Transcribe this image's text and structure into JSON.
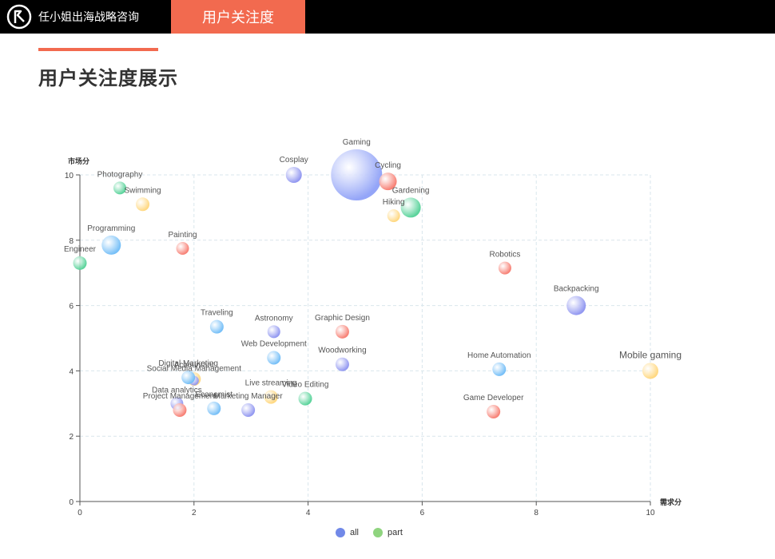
{
  "header": {
    "brand": "任小姐出海战略咨询",
    "tab": "用户关注度"
  },
  "page": {
    "title": "用户关注度展示"
  },
  "chart_data": {
    "type": "scatter",
    "xlabel": "需求分",
    "ylabel": "市场分",
    "xlim": [
      0,
      10
    ],
    "ylim": [
      0,
      10
    ],
    "xticks": [
      0,
      2,
      4,
      6,
      8,
      10
    ],
    "yticks": [
      0,
      2,
      4,
      6,
      8,
      10
    ],
    "grid": true,
    "legend_position": "bottom",
    "legend": [
      {
        "name": "all",
        "color": "#7189e8"
      },
      {
        "name": "part",
        "color": "#8fd47f"
      }
    ],
    "points": [
      {
        "label": "Gaming",
        "x": 4.85,
        "y": 10.0,
        "size": 3.2,
        "color": "#8ea0f7"
      },
      {
        "label": "Cosplay",
        "x": 3.75,
        "y": 10.0,
        "size": 1.0,
        "color": "#8d93f0"
      },
      {
        "label": "Cycling",
        "x": 5.4,
        "y": 9.8,
        "size": 1.1,
        "color": "#f77a6e"
      },
      {
        "label": "Gardening",
        "x": 5.8,
        "y": 9.0,
        "size": 1.25,
        "color": "#52d196"
      },
      {
        "label": "Hiking",
        "x": 5.5,
        "y": 8.75,
        "size": 0.8,
        "color": "#ffd67a"
      },
      {
        "label": "Photography",
        "x": 0.7,
        "y": 9.6,
        "size": 0.8,
        "color": "#52d196"
      },
      {
        "label": "Swimming",
        "x": 1.1,
        "y": 9.1,
        "size": 0.85,
        "color": "#ffd67a"
      },
      {
        "label": "Programming",
        "x": 0.55,
        "y": 7.85,
        "size": 1.2,
        "color": "#6fbcf7"
      },
      {
        "label": "Engineer",
        "x": 0.0,
        "y": 7.3,
        "size": 0.85,
        "color": "#52d196"
      },
      {
        "label": "Painting",
        "x": 1.8,
        "y": 7.75,
        "size": 0.8,
        "color": "#f77a6e"
      },
      {
        "label": "Robotics",
        "x": 7.45,
        "y": 7.15,
        "size": 0.8,
        "color": "#f77a6e"
      },
      {
        "label": "Backpacking",
        "x": 8.7,
        "y": 6.0,
        "size": 1.2,
        "color": "#8d93f0"
      },
      {
        "label": "Traveling",
        "x": 2.4,
        "y": 5.35,
        "size": 0.85,
        "color": "#6fbcf7"
      },
      {
        "label": "Astronomy",
        "x": 3.4,
        "y": 5.2,
        "size": 0.8,
        "color": "#8d93f0"
      },
      {
        "label": "Graphic Design",
        "x": 4.6,
        "y": 5.2,
        "size": 0.85,
        "color": "#f77a6e"
      },
      {
        "label": "Web Development",
        "x": 3.4,
        "y": 4.4,
        "size": 0.85,
        "color": "#6fbcf7"
      },
      {
        "label": "Woodworking",
        "x": 4.6,
        "y": 4.2,
        "size": 0.85,
        "color": "#8d93f0"
      },
      {
        "label": "Home Automation",
        "x": 7.35,
        "y": 4.05,
        "size": 0.85,
        "color": "#6fbcf7"
      },
      {
        "label": "Mobile gaming",
        "x": 10.0,
        "y": 4.0,
        "size": 1.0,
        "color": "#ffd67a"
      },
      {
        "label": "Accountant",
        "x": 2.0,
        "y": 3.75,
        "size": 0.85,
        "color": "#ffd67a"
      },
      {
        "label": "Social Media Management",
        "x": 2.0,
        "y": 3.7,
        "size": 0.6,
        "color": "#8d93f0"
      },
      {
        "label": "Digital Marketing",
        "x": 1.9,
        "y": 3.8,
        "size": 0.85,
        "color": "#6fbcf7"
      },
      {
        "label": "Live streaming",
        "x": 3.35,
        "y": 3.2,
        "size": 0.85,
        "color": "#ffd67a"
      },
      {
        "label": "Video Editing",
        "x": 3.95,
        "y": 3.15,
        "size": 0.85,
        "color": "#52d196"
      },
      {
        "label": "Data analytics",
        "x": 1.7,
        "y": 3.0,
        "size": 0.8,
        "color": "#8d93f0"
      },
      {
        "label": "Project Management",
        "x": 1.75,
        "y": 2.8,
        "size": 0.85,
        "color": "#f77a6e"
      },
      {
        "label": "Economist",
        "x": 2.35,
        "y": 2.85,
        "size": 0.85,
        "color": "#6fbcf7"
      },
      {
        "label": "Marketing Manager",
        "x": 2.95,
        "y": 2.8,
        "size": 0.85,
        "color": "#8d93f0"
      },
      {
        "label": "Game Developer",
        "x": 7.25,
        "y": 2.75,
        "size": 0.85,
        "color": "#f77a6e"
      }
    ]
  }
}
